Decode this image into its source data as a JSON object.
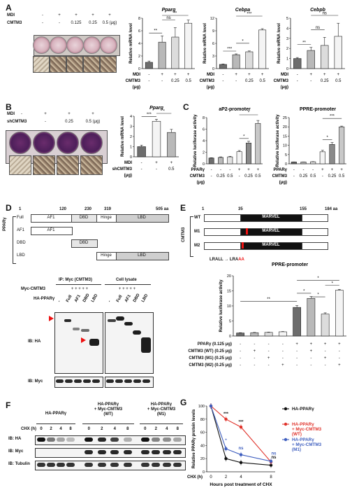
{
  "panels": {
    "A": {
      "letter": "A",
      "rows": [
        {
          "label": "MDI",
          "values": [
            "-",
            "+",
            "+",
            "+",
            "+"
          ]
        },
        {
          "label": "CMTM3",
          "values": [
            "-",
            "-",
            "0.125",
            "0.25",
            "0.5 (μg)"
          ]
        }
      ]
    },
    "B": {
      "letter": "B",
      "rows": [
        {
          "label": "MDI",
          "values": [
            "-",
            "+",
            "+",
            "+"
          ]
        },
        {
          "label": "shCMTM3",
          "values": [
            "-",
            "-",
            "0.25",
            "0.5 (μg)"
          ]
        }
      ]
    },
    "C": {
      "letter": "C"
    },
    "D": {
      "letter": "D",
      "ruler": [
        "1",
        "120",
        "230",
        "319",
        "505 aa"
      ],
      "side_label": "PPARγ",
      "constructs": [
        {
          "label": "Full",
          "domains": [
            "AF1",
            "DBD",
            "Hinge",
            "LBD"
          ]
        },
        {
          "label": "AF1",
          "domains": [
            "AF1"
          ]
        },
        {
          "label": "DBD",
          "domains": [
            "DBD"
          ]
        },
        {
          "label": "LBD",
          "domains": [
            "Hinge",
            "LBD"
          ]
        }
      ],
      "ip_label": "IP: Myc (CMTM3)",
      "lysate_label": "Cell lysate",
      "myc_row": "Myc-CMTM3",
      "ha_row": "HA-PPARγ",
      "lanes": [
        "-",
        "Full",
        "AF1",
        "DBD",
        "LBD"
      ],
      "ib_ha": "IB: HA",
      "ib_myc": "IB: Myc"
    },
    "E": {
      "letter": "E",
      "ruler": [
        "1",
        "35",
        "155",
        "184 aa"
      ],
      "side_label": "CMTM3",
      "constructs": [
        {
          "label": "WT",
          "domain": "MARVEL"
        },
        {
          "label": "M1",
          "domain": "MARVEL",
          "mutation": "LEFLL → LEF",
          "mut_aa": "AA"
        },
        {
          "label": "M2",
          "domain": "MARVEL",
          "mutation": "LRALL → LRA",
          "mut_aa": "AA"
        }
      ],
      "rows": [
        {
          "label": "PPARγ (0.125 μg)",
          "values": [
            "-",
            "-",
            "-",
            "-",
            "+",
            "+",
            "+",
            "+"
          ]
        },
        {
          "label": "CMTM3 (WT) (0.25 μg)",
          "values": [
            "-",
            "+",
            "-",
            "-",
            "-",
            "+",
            "-",
            "-"
          ]
        },
        {
          "label": "CMTM3 (M1) (0.25 μg)",
          "values": [
            "-",
            "-",
            "+",
            "-",
            "-",
            "-",
            "+",
            "-"
          ]
        },
        {
          "label": "CMTM3 (M2) (0.25 μg)",
          "values": [
            "-",
            "-",
            "-",
            "+",
            "-",
            "-",
            "-",
            "+"
          ]
        }
      ]
    },
    "F": {
      "letter": "F",
      "groups": [
        "HA-PPARγ",
        "HA-PPARγ + Myc-CMTM3 (WT)",
        "HA-PPARγ + Myc-CMTM3 (M1)"
      ],
      "chx_label": "CHX (h)",
      "times": [
        "0",
        "2",
        "4",
        "8"
      ],
      "ib_rows": [
        "IB: HA",
        "IB: Myc",
        "IB: Tubulin"
      ]
    },
    "G": {
      "letter": "G"
    }
  },
  "chart_data": [
    {
      "id": "A-pparg",
      "type": "bar",
      "title": "Pparg",
      "ylabel": "Relative mRNA level",
      "ylim": [
        0,
        8
      ],
      "yticks": [
        0,
        2,
        4,
        6,
        8
      ],
      "values": [
        1.0,
        4.2,
        5.0,
        7.2
      ],
      "errors": [
        0.2,
        1.0,
        1.5,
        0.5
      ],
      "rows": [
        {
          "label": "MDI",
          "values": [
            "-",
            "+",
            "+",
            "+"
          ]
        },
        {
          "label": "CMTM3",
          "values": [
            "-",
            "-",
            "0.25",
            "0.5"
          ]
        }
      ],
      "unit": "(μg)",
      "sig": [
        {
          "from": 0,
          "to": 1,
          "text": "**"
        },
        {
          "from": 1,
          "to": 2,
          "text": "ns"
        },
        {
          "from": 1,
          "to": 3,
          "text": "**"
        }
      ]
    },
    {
      "id": "A-cebpa",
      "type": "bar",
      "title": "Cebpa",
      "ylabel": "Relative mRNA level",
      "ylim": [
        0,
        12
      ],
      "yticks": [
        0,
        3,
        6,
        9,
        12
      ],
      "values": [
        1.0,
        3.3,
        4.0,
        9.2
      ],
      "errors": [
        0.1,
        0.2,
        0.2,
        0.3
      ],
      "rows": [
        {
          "label": "MDI",
          "values": [
            "-",
            "+",
            "+",
            "+"
          ]
        },
        {
          "label": "CMTM3",
          "values": [
            "-",
            "-",
            "0.25",
            "0.5"
          ]
        }
      ],
      "unit": "(μg)",
      "sig": [
        {
          "from": 0,
          "to": 1,
          "text": "***"
        },
        {
          "from": 1,
          "to": 2,
          "text": "*"
        },
        {
          "from": 1,
          "to": 3,
          "text": "***"
        }
      ]
    },
    {
      "id": "A-cebpb",
      "type": "bar",
      "title": "Cebpb",
      "ylabel": "Relative mRNA level",
      "ylim": [
        0,
        5
      ],
      "yticks": [
        0,
        1,
        2,
        3,
        4,
        5
      ],
      "values": [
        1.0,
        1.8,
        2.3,
        3.2
      ],
      "errors": [
        0.1,
        0.3,
        0.8,
        1.3
      ],
      "rows": [
        {
          "label": "MDI",
          "values": [
            "-",
            "+",
            "+",
            "+"
          ]
        },
        {
          "label": "CMTM3",
          "values": [
            "-",
            "-",
            "0.25",
            "0.5"
          ]
        }
      ],
      "unit": "(μg)",
      "sig": [
        {
          "from": 0,
          "to": 1,
          "text": "**"
        },
        {
          "from": 1,
          "to": 2,
          "text": "ns"
        },
        {
          "from": 1,
          "to": 3,
          "text": "ns"
        }
      ]
    },
    {
      "id": "B-pparg",
      "type": "bar",
      "title": "Pparg",
      "ylabel": "Relative mRNA level",
      "ylim": [
        0,
        4
      ],
      "yticks": [
        0,
        1,
        2,
        3,
        4
      ],
      "values": [
        1.0,
        3.5,
        2.4
      ],
      "errors": [
        0.15,
        0.2,
        0.3
      ],
      "rows": [
        {
          "label": "MDI",
          "values": [
            "-",
            "+",
            "+"
          ]
        },
        {
          "label": "shCMTM3",
          "values": [
            "-",
            "-",
            "0.5"
          ]
        }
      ],
      "unit": "(μg)",
      "sig": [
        {
          "from": 0,
          "to": 1,
          "text": "***"
        },
        {
          "from": 1,
          "to": 2,
          "text": "*"
        }
      ]
    },
    {
      "id": "C-ap2",
      "type": "bar",
      "title": "aP2-promoter",
      "ylabel": "Relative luciferase activity",
      "ylim": [
        0,
        8
      ],
      "yticks": [
        0,
        2,
        4,
        6,
        8
      ],
      "values": [
        1.0,
        1.1,
        1.2,
        2.1,
        3.6,
        7.0
      ],
      "errors": [
        0.05,
        0.1,
        0.1,
        0.2,
        0.3,
        0.5
      ],
      "rows": [
        {
          "label": "PPARγ",
          "values": [
            "-",
            "-",
            "-",
            "+",
            "+",
            "+"
          ]
        },
        {
          "label": "CMTM3",
          "values": [
            "-",
            "0.25",
            "0.5",
            "-",
            "0.25",
            "0.5"
          ]
        }
      ],
      "unit": "(μg)",
      "sig": [
        {
          "from": 3,
          "to": 4,
          "text": "*"
        },
        {
          "from": 3,
          "to": 5,
          "text": "*"
        }
      ]
    },
    {
      "id": "C-ppre",
      "type": "bar",
      "title": "PPRE-promoter",
      "ylabel": "Relative luciferase activity",
      "ylim": [
        0,
        25
      ],
      "yticks": [
        0,
        5,
        10,
        15,
        20,
        25
      ],
      "values": [
        1.0,
        1.0,
        1.1,
        6.5,
        10.5,
        20.0
      ],
      "errors": [
        0.05,
        0.05,
        0.1,
        0.8,
        1.0,
        0.4
      ],
      "rows": [
        {
          "label": "PPARγ",
          "values": [
            "-",
            "-",
            "-",
            "+",
            "+",
            "+"
          ]
        },
        {
          "label": "CMTM3",
          "values": [
            "-",
            "0.25",
            "0.5",
            "-",
            "0.25",
            "0.5"
          ]
        }
      ],
      "unit": "(μg)",
      "sig": [
        {
          "from": 3,
          "to": 4,
          "text": "*"
        },
        {
          "from": 3,
          "to": 5,
          "text": "***"
        }
      ]
    },
    {
      "id": "E-ppre",
      "type": "bar",
      "title": "PPRE-promoter",
      "ylabel": "Relative luciferase activity",
      "ylim": [
        0,
        20
      ],
      "yticks": [
        0,
        5,
        10,
        15,
        20
      ],
      "values": [
        1.0,
        1.1,
        1.2,
        1.4,
        9.5,
        12.5,
        7.3,
        15.2
      ],
      "errors": [
        0.1,
        0.1,
        0.1,
        0.1,
        0.6,
        0.6,
        0.4,
        0.3
      ],
      "sig": [
        {
          "from": 0,
          "to": 4,
          "text": "**"
        },
        {
          "from": 4,
          "to": 5,
          "text": "*"
        },
        {
          "from": 5,
          "to": 6,
          "text": "*"
        },
        {
          "from": 6,
          "to": 7,
          "text": "*"
        },
        {
          "from": 4,
          "to": 7,
          "text": "*"
        }
      ]
    },
    {
      "id": "G-stability",
      "type": "line",
      "ylabel": "Relative PPARγ protein levels",
      "xlabel": "Hours post treatment of CHX",
      "x_axis_label": "CHX (h)",
      "x": [
        0,
        2,
        4,
        8
      ],
      "ylim": [
        0,
        100
      ],
      "yticks": [
        0,
        20,
        40,
        60,
        80,
        100
      ],
      "series": [
        {
          "name": "HA-PPARγ",
          "color": "#111111",
          "values": [
            100,
            20,
            14,
            10
          ]
        },
        {
          "name": "HA-PPARγ + Myc-CMTM3 (WT)",
          "color": "#e0332b",
          "values": [
            100,
            80,
            68,
            15
          ]
        },
        {
          "name": "HA-PPARγ + Myc-CMTM3 (M1)",
          "color": "#3f5fbf",
          "values": [
            100,
            35,
            26,
            16
          ]
        }
      ],
      "annotations": [
        {
          "x": 2,
          "text": "***"
        },
        {
          "x": 2,
          "text": "*"
        },
        {
          "x": 4,
          "text": "***"
        },
        {
          "x": 4,
          "text": "ns"
        },
        {
          "x": 8,
          "text": "ns"
        },
        {
          "x": 8,
          "text": "ns"
        }
      ]
    }
  ]
}
